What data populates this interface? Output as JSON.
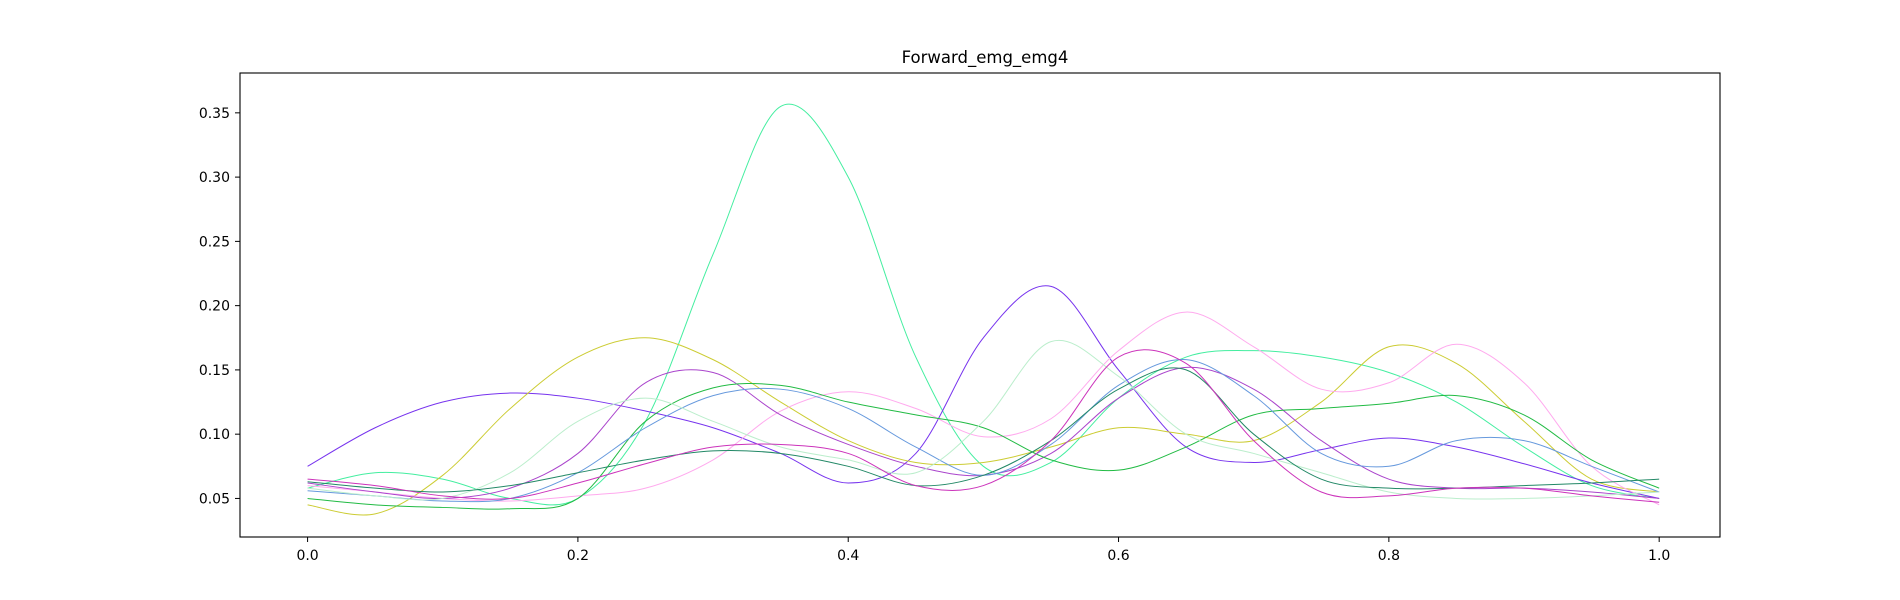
{
  "chart_data": {
    "type": "line",
    "title": "Forward_emg_emg4",
    "xlabel": "",
    "ylabel": "",
    "xlim": [
      -0.05,
      1.045
    ],
    "ylim": [
      0.02,
      0.381
    ],
    "x_ticks": [
      0.0,
      0.2,
      0.4,
      0.6,
      0.8,
      1.0
    ],
    "x_tick_labels": [
      "0.0",
      "0.2",
      "0.4",
      "0.6",
      "0.8",
      "1.0"
    ],
    "y_ticks": [
      0.05,
      0.1,
      0.15,
      0.2,
      0.25,
      0.3,
      0.35
    ],
    "y_tick_labels": [
      "0.05",
      "0.10",
      "0.15",
      "0.20",
      "0.25",
      "0.30",
      "0.35"
    ],
    "grid": false,
    "legend": "none",
    "x": [
      0.0,
      0.05,
      0.1,
      0.15,
      0.2,
      0.25,
      0.3,
      0.35,
      0.4,
      0.45,
      0.5,
      0.55,
      0.6,
      0.65,
      0.7,
      0.75,
      0.8,
      0.85,
      0.9,
      0.95,
      1.0
    ],
    "series": [
      {
        "color": "#44eea0",
        "values": [
          0.058,
          0.07,
          0.065,
          0.05,
          0.05,
          0.11,
          0.24,
          0.355,
          0.3,
          0.16,
          0.075,
          0.078,
          0.128,
          0.16,
          0.165,
          0.16,
          0.148,
          0.125,
          0.09,
          0.06,
          0.05
        ]
      },
      {
        "color": "#7733ee",
        "values": [
          0.075,
          0.105,
          0.125,
          0.132,
          0.128,
          0.118,
          0.105,
          0.085,
          0.062,
          0.085,
          0.175,
          0.215,
          0.15,
          0.09,
          0.078,
          0.088,
          0.097,
          0.09,
          0.077,
          0.062,
          0.05
        ]
      },
      {
        "color": "#cccc33",
        "values": [
          0.045,
          0.038,
          0.068,
          0.12,
          0.16,
          0.175,
          0.158,
          0.125,
          0.095,
          0.078,
          0.078,
          0.09,
          0.105,
          0.1,
          0.095,
          0.125,
          0.168,
          0.155,
          0.11,
          0.065,
          0.055
        ]
      },
      {
        "color": "#ffaaee",
        "values": [
          0.06,
          0.055,
          0.05,
          0.048,
          0.052,
          0.058,
          0.08,
          0.118,
          0.133,
          0.12,
          0.098,
          0.112,
          0.165,
          0.195,
          0.168,
          0.135,
          0.14,
          0.17,
          0.14,
          0.075,
          0.045
        ]
      },
      {
        "color": "#aa44cc",
        "values": [
          0.062,
          0.055,
          0.05,
          0.058,
          0.085,
          0.14,
          0.148,
          0.115,
          0.092,
          0.075,
          0.068,
          0.085,
          0.128,
          0.152,
          0.135,
          0.095,
          0.065,
          0.058,
          0.058,
          0.055,
          0.05
        ]
      },
      {
        "color": "#22bb44",
        "values": [
          0.05,
          0.045,
          0.043,
          0.042,
          0.05,
          0.11,
          0.136,
          0.138,
          0.125,
          0.115,
          0.105,
          0.08,
          0.072,
          0.09,
          0.115,
          0.12,
          0.124,
          0.13,
          0.115,
          0.08,
          0.058
        ]
      },
      {
        "color": "#6699dd",
        "values": [
          0.056,
          0.052,
          0.048,
          0.05,
          0.07,
          0.105,
          0.13,
          0.135,
          0.12,
          0.09,
          0.068,
          0.092,
          0.138,
          0.158,
          0.13,
          0.085,
          0.075,
          0.095,
          0.095,
          0.075,
          0.055
        ]
      },
      {
        "color": "#bbeecc",
        "values": [
          0.058,
          0.052,
          0.05,
          0.07,
          0.11,
          0.128,
          0.11,
          0.09,
          0.08,
          0.07,
          0.11,
          0.172,
          0.145,
          0.1,
          0.085,
          0.07,
          0.055,
          0.05,
          0.05,
          0.052,
          0.055
        ]
      },
      {
        "color": "#228866",
        "values": [
          0.063,
          0.058,
          0.055,
          0.06,
          0.07,
          0.08,
          0.087,
          0.085,
          0.075,
          0.06,
          0.068,
          0.095,
          0.135,
          0.15,
          0.1,
          0.065,
          0.058,
          0.058,
          0.06,
          0.062,
          0.065
        ]
      },
      {
        "color": "#cc33bb",
        "values": [
          0.065,
          0.06,
          0.052,
          0.05,
          0.062,
          0.077,
          0.09,
          0.092,
          0.085,
          0.06,
          0.06,
          0.095,
          0.16,
          0.155,
          0.095,
          0.055,
          0.052,
          0.058,
          0.058,
          0.052,
          0.047
        ]
      }
    ]
  }
}
